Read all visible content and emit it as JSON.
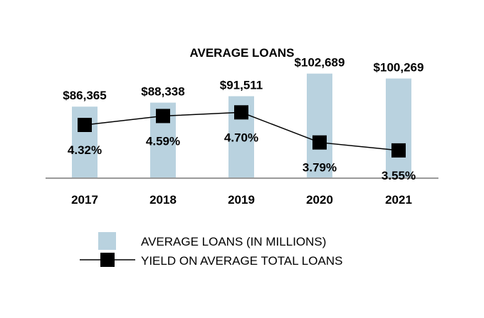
{
  "chart_data": {
    "type": "bar",
    "title": "AVERAGE LOANS",
    "categories": [
      "2017",
      "2018",
      "2019",
      "2020",
      "2021"
    ],
    "series": [
      {
        "name": "AVERAGE LOANS (IN MILLIONS)",
        "type": "bar",
        "values": [
          86365,
          88338,
          91511,
          102689,
          100269
        ],
        "labels": [
          "$86,365",
          "$88,338",
          "$91,511",
          "$102,689",
          "$100,269"
        ],
        "color": "#b9d2df"
      },
      {
        "name": "YIELD ON AVERAGE TOTAL LOANS",
        "type": "line",
        "values": [
          4.32,
          4.59,
          4.7,
          3.79,
          3.55
        ],
        "labels": [
          "4.32%",
          "4.59%",
          "4.70%",
          "3.79%",
          "3.55%"
        ],
        "color": "#000000"
      }
    ],
    "grid": false,
    "legend_position": "bottom"
  }
}
